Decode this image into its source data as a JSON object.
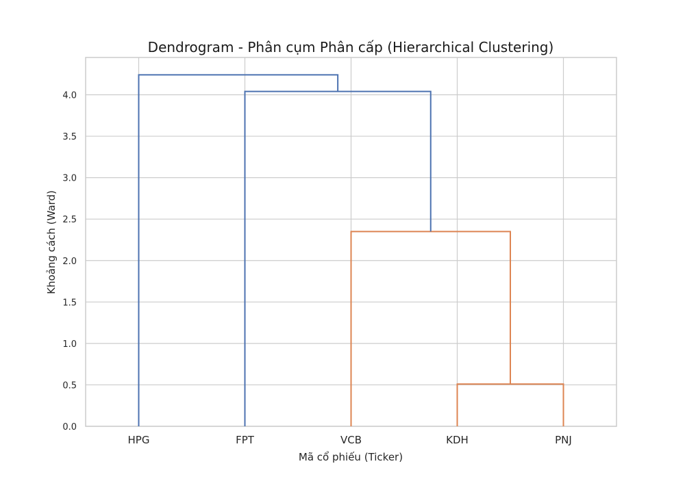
{
  "chart_data": {
    "type": "dendrogram",
    "title": "Dendrogram - Phân cụm Phân cấp (Hierarchical Clustering)",
    "xlabel": "Mã cổ phiếu (Ticker)",
    "ylabel": "Khoảng cách (Ward)",
    "leaves": [
      "HPG",
      "FPT",
      "VCB",
      "KDH",
      "PNJ"
    ],
    "ylim": [
      0,
      4.45
    ],
    "yticks": [
      "0.0",
      "0.5",
      "1.0",
      "1.5",
      "2.0",
      "2.5",
      "3.0",
      "3.5",
      "4.0"
    ],
    "grid": true,
    "colors": {
      "cluster_1": "#dd8452",
      "above_threshold": "#4c72b0"
    },
    "merges": [
      {
        "left": "KDH",
        "right": "PNJ",
        "height": 0.51,
        "color_key": "cluster_1"
      },
      {
        "left": "VCB",
        "right": "KDH+PNJ",
        "height": 2.35,
        "color_key": "cluster_1"
      },
      {
        "left": "FPT",
        "right": "VCB+KDH+PNJ",
        "height": 4.04,
        "color_key": "above_threshold"
      },
      {
        "left": "HPG",
        "right": "FPT+VCB+KDH+PNJ",
        "height": 4.24,
        "color_key": "above_threshold"
      }
    ]
  }
}
